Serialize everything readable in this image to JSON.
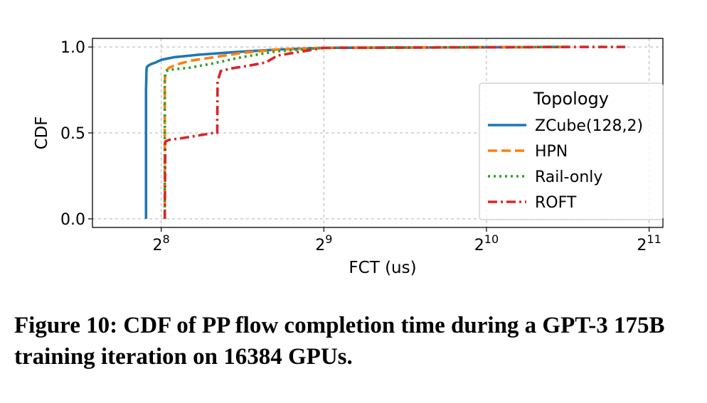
{
  "chart_data": {
    "type": "line",
    "title": "",
    "xlabel": "FCT (us)",
    "ylabel": "CDF",
    "x_scale": "log2",
    "xlim": [
      191,
      2172
    ],
    "ylim": [
      -0.05,
      1.05
    ],
    "grid": true,
    "x_ticks": [
      {
        "value": 256,
        "base": "2",
        "exp": "8"
      },
      {
        "value": 512,
        "base": "2",
        "exp": "9"
      },
      {
        "value": 1024,
        "base": "2",
        "exp": "10"
      },
      {
        "value": 2048,
        "base": "2",
        "exp": "11"
      }
    ],
    "y_ticks": [
      {
        "value": 0.0,
        "label": "0.0"
      },
      {
        "value": 0.5,
        "label": "0.5"
      },
      {
        "value": 1.0,
        "label": "1.0"
      }
    ],
    "legend": {
      "title": "Topology",
      "position": "right"
    },
    "series": [
      {
        "name": "ZCube(128,2)",
        "color": "#1f77b4",
        "dash": "solid",
        "x": [
          240,
          240,
          240.5,
          241,
          242,
          245,
          250,
          256,
          270,
          300,
          350,
          420,
          512,
          1450
        ],
        "y": [
          0.0,
          0.75,
          0.87,
          0.885,
          0.89,
          0.9,
          0.91,
          0.925,
          0.94,
          0.955,
          0.97,
          0.985,
          0.995,
          1.0
        ]
      },
      {
        "name": "HPN",
        "color": "#ff7f0e",
        "dash": "dashed",
        "x": [
          260,
          260,
          260.5,
          261,
          265,
          275,
          290,
          320,
          360,
          420,
          512,
          1450
        ],
        "y": [
          0.0,
          0.8,
          0.85,
          0.86,
          0.88,
          0.9,
          0.92,
          0.94,
          0.965,
          0.985,
          0.995,
          1.0
        ]
      },
      {
        "name": "Rail-only",
        "color": "#2ca02c",
        "dash": "dotted",
        "x": [
          260,
          260,
          260.5,
          262,
          270,
          290,
          320,
          360,
          420,
          512,
          1450
        ],
        "y": [
          0.0,
          0.8,
          0.85,
          0.86,
          0.87,
          0.88,
          0.905,
          0.94,
          0.975,
          0.995,
          1.0
        ]
      },
      {
        "name": "ROFT",
        "color": "#d62728",
        "dash": "dashdot",
        "x": [
          260,
          260.5,
          265,
          280,
          300,
          320,
          325,
          325.5,
          330,
          345,
          370,
          400,
          420,
          512,
          1450,
          1850
        ],
        "y": [
          0.0,
          0.45,
          0.46,
          0.47,
          0.485,
          0.5,
          0.5,
          0.8,
          0.86,
          0.875,
          0.89,
          0.91,
          0.95,
          0.995,
          1.0,
          1.0
        ]
      }
    ]
  },
  "caption": "Figure 10: CDF of PP flow completion time during a GPT-3 175B training iteration on 16384 GPUs."
}
